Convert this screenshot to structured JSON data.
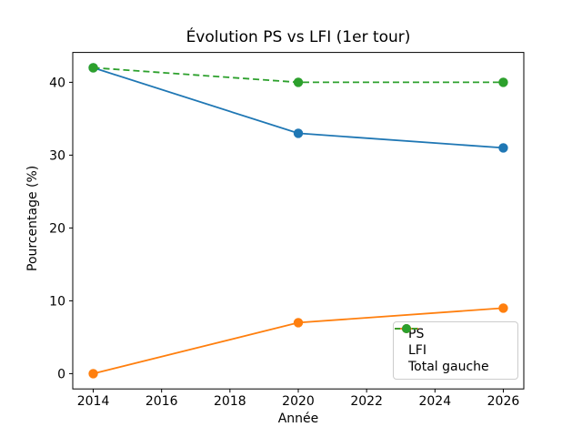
{
  "chart_data": {
    "type": "line",
    "title": "Évolution PS vs LFI (1er tour)",
    "xlabel": "Année",
    "ylabel": "Pourcentage (%)",
    "x": [
      2014,
      2020,
      2026
    ],
    "series": [
      {
        "name": "PS",
        "values": [
          42,
          33,
          31
        ],
        "color": "#1f77b4",
        "dash": "solid"
      },
      {
        "name": "LFI",
        "values": [
          0,
          7,
          9
        ],
        "color": "#ff7f0e",
        "dash": "solid"
      },
      {
        "name": "Total gauche",
        "values": [
          42,
          40,
          40
        ],
        "color": "#2ca02c",
        "dash": "dashed"
      }
    ],
    "xtick_labels": [
      "2014",
      "2016",
      "2018",
      "2020",
      "2022",
      "2024",
      "2026"
    ],
    "xticks": [
      2014,
      2016,
      2018,
      2020,
      2022,
      2024,
      2026
    ],
    "ytick_labels": [
      "0",
      "10",
      "20",
      "30",
      "40"
    ],
    "yticks": [
      0,
      10,
      20,
      30,
      40
    ],
    "xlim": [
      2013.4,
      2026.6
    ],
    "ylim": [
      -2.1,
      44.1
    ],
    "grid": false,
    "legend_position": "lower right",
    "background_color": "#ffffff",
    "frame_color": "#000000"
  }
}
